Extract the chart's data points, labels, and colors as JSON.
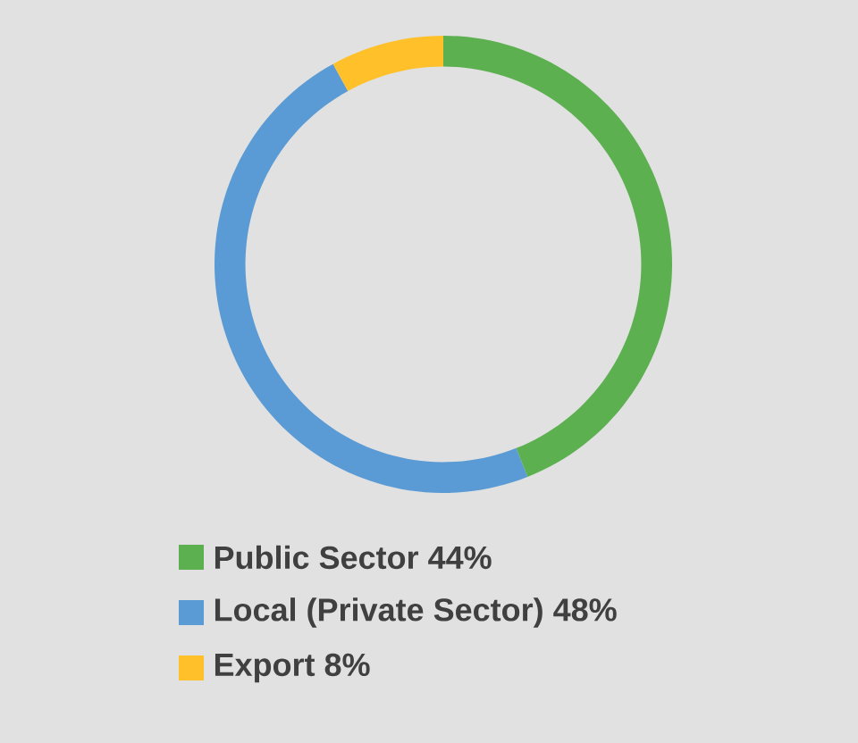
{
  "chart_data": {
    "type": "donut",
    "categories": [
      "Public Sector",
      "Local (Private Sector)",
      "Export"
    ],
    "values": [
      44,
      48,
      8
    ],
    "value_labels": [
      "44%",
      "48%",
      "8%"
    ],
    "colors": [
      "#5cb050",
      "#5b9bd5",
      "#ffc02a"
    ],
    "legend": "bottom"
  }
}
